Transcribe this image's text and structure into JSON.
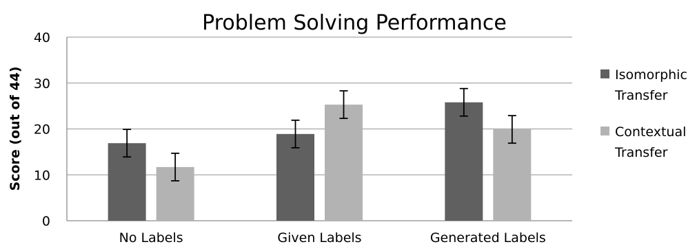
{
  "chart_data": {
    "type": "bar",
    "title": "Problem Solving Performance",
    "xlabel": "",
    "ylabel": "Score (out of 44)",
    "ylim": [
      0,
      40
    ],
    "yticks": [
      0,
      10,
      20,
      30,
      40
    ],
    "grid": true,
    "legend_position": "right",
    "categories": [
      "No Labels",
      "Given Labels",
      "Generated Labels"
    ],
    "series": [
      {
        "name": "Isomorphic Transfer",
        "color": "#606060",
        "values": [
          16.9,
          18.9,
          25.8
        ],
        "error": [
          3.0,
          3.0,
          3.0
        ]
      },
      {
        "name": "Contextual Transfer",
        "color": "#b3b3b3",
        "values": [
          11.7,
          25.3,
          19.9
        ],
        "error": [
          3.0,
          3.0,
          3.0
        ]
      }
    ],
    "legend_lines": [
      [
        "Isomorphic",
        "Transfer"
      ],
      [
        "Contextual",
        "Transfer"
      ]
    ]
  }
}
